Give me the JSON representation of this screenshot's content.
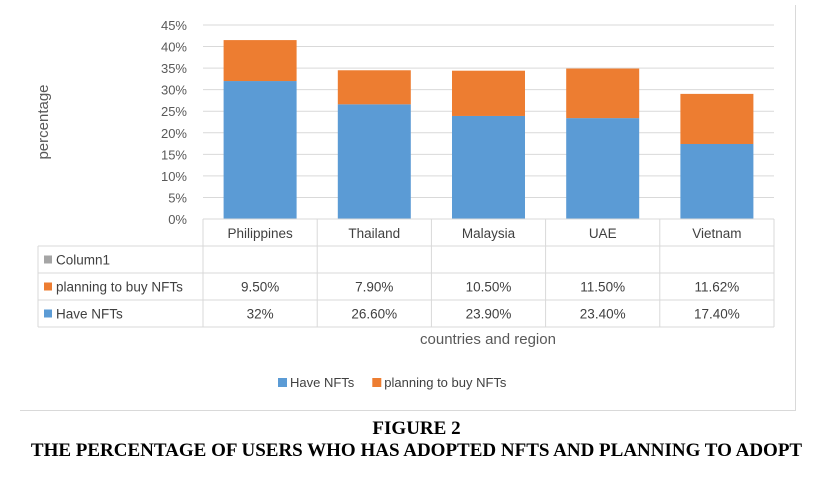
{
  "chart_data": {
    "type": "bar",
    "stacked": true,
    "categories": [
      "Philippines",
      "Thailand",
      "Malaysia",
      "UAE",
      "Vietnam"
    ],
    "series": [
      {
        "name": "Have NFTs",
        "color": "#5b9bd5",
        "values": [
          32,
          26.6,
          23.9,
          23.4,
          17.4
        ],
        "labels": [
          "32%",
          "26.60%",
          "23.90%",
          "23.40%",
          "17.40%"
        ]
      },
      {
        "name": "planning to buy NFTs",
        "color": "#ed7d31",
        "values": [
          9.5,
          7.9,
          10.5,
          11.5,
          11.62
        ],
        "labels": [
          "9.50%",
          "7.90%",
          "10.50%",
          "11.50%",
          "11.62%"
        ]
      }
    ],
    "data_table": {
      "rows": [
        {
          "name": "Column1",
          "color": "#a5a5a5",
          "labels": [
            "",
            "",
            "",
            "",
            ""
          ]
        },
        {
          "name": "planning to buy NFTs",
          "color": "#ed7d31",
          "labels": [
            "9.50%",
            "7.90%",
            "10.50%",
            "11.50%",
            "11.62%"
          ]
        },
        {
          "name": "Have NFTs",
          "color": "#5b9bd5",
          "labels": [
            "32%",
            "26.60%",
            "23.90%",
            "23.40%",
            "17.40%"
          ]
        }
      ]
    },
    "ylabel": "percentage",
    "xlabel": "countries and region",
    "ylim": [
      0,
      45
    ],
    "yticks": [
      0,
      5,
      10,
      15,
      20,
      25,
      30,
      35,
      40,
      45
    ],
    "ytick_labels": [
      "0%",
      "5%",
      "10%",
      "15%",
      "20%",
      "25%",
      "30%",
      "35%",
      "40%",
      "45%"
    ],
    "grid": true,
    "legend": {
      "position": "bottom",
      "entries": [
        "Have NFTs",
        "planning to buy NFTs"
      ]
    }
  },
  "caption": {
    "figure": "FIGURE 2",
    "title": "THE PERCENTAGE OF USERS WHO HAS ADOPTED NFTS AND PLANNING TO ADOPT"
  }
}
